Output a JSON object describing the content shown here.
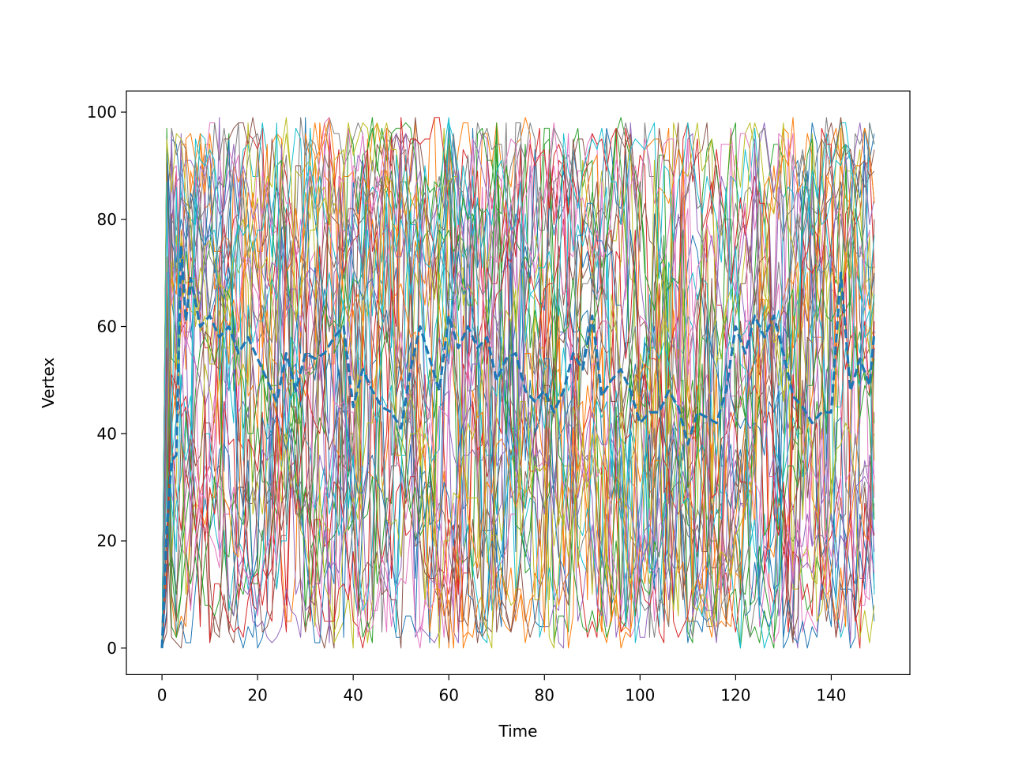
{
  "chart_data": {
    "type": "line",
    "title": "",
    "xlabel": "Time",
    "ylabel": "Vertex",
    "xlim": [
      -7.45,
      156.45
    ],
    "ylim": [
      -4.95,
      103.95
    ],
    "xticks": [
      0,
      20,
      40,
      60,
      80,
      100,
      120,
      140
    ],
    "yticks": [
      0,
      20,
      40,
      60,
      80,
      100
    ],
    "grid": false,
    "legend": "none",
    "n_steps": 150,
    "n_walkers": 40,
    "value_range": [
      0,
      99
    ],
    "series_colors": [
      "#1f77b4",
      "#ff7f0e",
      "#2ca02c",
      "#d62728",
      "#9467bd",
      "#8c564b",
      "#e377c2",
      "#7f7f7f",
      "#bcbd22",
      "#17becf"
    ],
    "mean_color": "#1f77b4",
    "mean_series": {
      "style": "dashed",
      "x": [
        0,
        1,
        2,
        3,
        4,
        5,
        6,
        8,
        10,
        12,
        14,
        16,
        18,
        20,
        22,
        24,
        26,
        28,
        30,
        32,
        34,
        36,
        38,
        40,
        42,
        44,
        46,
        48,
        50,
        52,
        54,
        56,
        58,
        60,
        62,
        64,
        66,
        68,
        70,
        72,
        74,
        76,
        78,
        80,
        82,
        84,
        86,
        88,
        90,
        92,
        94,
        96,
        98,
        100,
        102,
        104,
        106,
        108,
        110,
        112,
        114,
        116,
        118,
        120,
        122,
        124,
        126,
        128,
        130,
        132,
        134,
        136,
        138,
        140,
        142,
        144,
        146,
        148,
        149
      ],
      "values": [
        0,
        22,
        35,
        36,
        75,
        61,
        69,
        60,
        62,
        58,
        60,
        55,
        58,
        54,
        50,
        46,
        55,
        48,
        55,
        54,
        55,
        58,
        60,
        45,
        52,
        48,
        45,
        44,
        41,
        52,
        60,
        54,
        48,
        62,
        56,
        60,
        56,
        58,
        50,
        54,
        55,
        48,
        46,
        48,
        44,
        48,
        55,
        52,
        62,
        47,
        50,
        52,
        48,
        42,
        44,
        44,
        48,
        45,
        38,
        44,
        43,
        42,
        48,
        60,
        55,
        62,
        58,
        62,
        55,
        47,
        45,
        42,
        44,
        44,
        70,
        48,
        54,
        49,
        59
      ]
    }
  }
}
